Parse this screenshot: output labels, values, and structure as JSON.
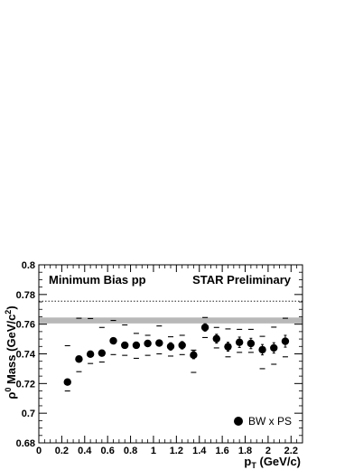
{
  "chart_data": {
    "type": "scatter",
    "xlabel": "p_T (GeV/c)",
    "ylabel": "ρ^0 Mass (GeV/c^2)",
    "xlim": [
      0,
      2.3
    ],
    "ylim": [
      0.68,
      0.8
    ],
    "x_ticks": [
      0,
      0.2,
      0.4,
      0.6,
      0.8,
      1,
      1.2,
      1.4,
      1.6,
      1.8,
      2,
      2.2
    ],
    "y_ticks": [
      0.68,
      0.7,
      0.72,
      0.74,
      0.76,
      0.78,
      0.8
    ],
    "annotations": {
      "left": "Minimum Bias pp",
      "right": "STAR Preliminary"
    },
    "legend": {
      "label": "BW x PS",
      "position": "bottom-right"
    },
    "reference_band": {
      "low": 0.7605,
      "high": 0.7645
    },
    "reference_line": {
      "y": 0.7755,
      "style": "dotted"
    },
    "series": [
      {
        "name": "BW x PS",
        "points": [
          {
            "x": 0.25,
            "y": 0.721,
            "stat_low": 0.7195,
            "stat_high": 0.7225,
            "sys_low": 0.715,
            "sys_high": 0.7455
          },
          {
            "x": 0.35,
            "y": 0.7365,
            "stat_low": 0.735,
            "stat_high": 0.738,
            "sys_low": 0.728,
            "sys_high": 0.764
          },
          {
            "x": 0.45,
            "y": 0.7398,
            "stat_low": 0.7383,
            "stat_high": 0.7413,
            "sys_low": 0.7335,
            "sys_high": 0.7638
          },
          {
            "x": 0.55,
            "y": 0.7405,
            "stat_low": 0.739,
            "stat_high": 0.742,
            "sys_low": 0.7345,
            "sys_high": 0.7578
          },
          {
            "x": 0.65,
            "y": 0.7488,
            "stat_low": 0.7473,
            "stat_high": 0.7503,
            "sys_low": 0.7395,
            "sys_high": 0.7625
          },
          {
            "x": 0.75,
            "y": 0.7458,
            "stat_low": 0.744,
            "stat_high": 0.7478,
            "sys_low": 0.739,
            "sys_high": 0.7595
          },
          {
            "x": 0.85,
            "y": 0.7458,
            "stat_low": 0.744,
            "stat_high": 0.7478,
            "sys_low": 0.737,
            "sys_high": 0.7538
          },
          {
            "x": 0.95,
            "y": 0.747,
            "stat_low": 0.745,
            "stat_high": 0.749,
            "sys_low": 0.739,
            "sys_high": 0.7525
          },
          {
            "x": 1.05,
            "y": 0.7473,
            "stat_low": 0.7453,
            "stat_high": 0.7493,
            "sys_low": 0.74,
            "sys_high": 0.7588
          },
          {
            "x": 1.15,
            "y": 0.745,
            "stat_low": 0.7425,
            "stat_high": 0.7475,
            "sys_low": 0.7385,
            "sys_high": 0.7515
          },
          {
            "x": 1.25,
            "y": 0.7458,
            "stat_low": 0.7433,
            "stat_high": 0.7483,
            "sys_low": 0.7395,
            "sys_high": 0.7525
          },
          {
            "x": 1.35,
            "y": 0.7392,
            "stat_low": 0.7367,
            "stat_high": 0.7417,
            "sys_low": 0.7275,
            "sys_high": 0.7425
          },
          {
            "x": 1.45,
            "y": 0.7578,
            "stat_low": 0.7553,
            "stat_high": 0.7603,
            "sys_low": 0.751,
            "sys_high": 0.7645
          },
          {
            "x": 1.55,
            "y": 0.7502,
            "stat_low": 0.7472,
            "stat_high": 0.7532,
            "sys_low": 0.744,
            "sys_high": 0.7578
          },
          {
            "x": 1.65,
            "y": 0.7448,
            "stat_low": 0.7418,
            "stat_high": 0.7478,
            "sys_low": 0.738,
            "sys_high": 0.7568
          },
          {
            "x": 1.75,
            "y": 0.7478,
            "stat_low": 0.7443,
            "stat_high": 0.7513,
            "sys_low": 0.741,
            "sys_high": 0.7565
          },
          {
            "x": 1.85,
            "y": 0.747,
            "stat_low": 0.7435,
            "stat_high": 0.7505,
            "sys_low": 0.741,
            "sys_high": 0.7565
          },
          {
            "x": 1.95,
            "y": 0.7428,
            "stat_low": 0.7393,
            "stat_high": 0.7463,
            "sys_low": 0.73,
            "sys_high": 0.7518
          },
          {
            "x": 2.05,
            "y": 0.744,
            "stat_low": 0.7405,
            "stat_high": 0.7475,
            "sys_low": 0.733,
            "sys_high": 0.758
          },
          {
            "x": 2.15,
            "y": 0.7485,
            "stat_low": 0.7445,
            "stat_high": 0.7525,
            "sys_low": 0.738,
            "sys_high": 0.764
          }
        ]
      }
    ]
  }
}
